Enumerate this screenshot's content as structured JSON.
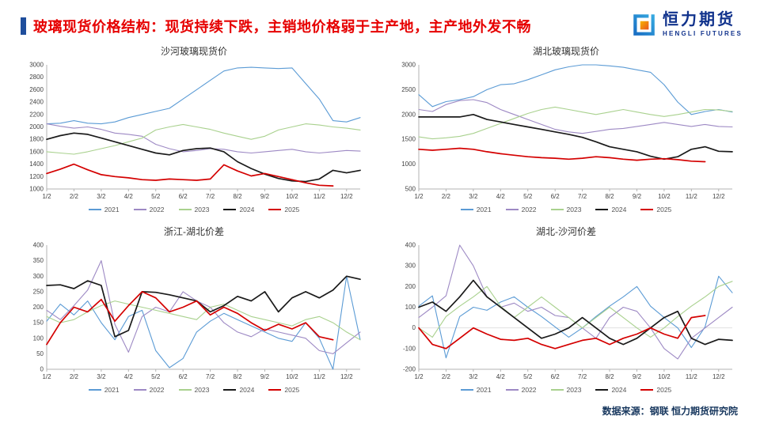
{
  "header": {
    "title": "玻璃现货价格结构：现货持续下跌，主销地价格弱于主产地，主产地外发不畅"
  },
  "logo": {
    "name": "恒力期货",
    "subtitle": "HENGLI FUTURES"
  },
  "footer": {
    "source": "数据来源：钢联  恒力期货研究院"
  },
  "colors": {
    "accent_bar": "#1F4E9C",
    "title_red": "#E60000",
    "logo_navy": "#10328C",
    "footer_navy": "#17375E",
    "series_2021": "#5B9BD5",
    "series_2022": "#9D89C4",
    "series_2023": "#A9D18E",
    "series_2024": "#1A1A1A",
    "series_2025": "#D40000"
  },
  "chart_data": [
    {
      "type": "line",
      "title": "沙河玻璃现货价",
      "x_tick_labels": [
        "1/2",
        "2/2",
        "3/2",
        "4/2",
        "5/2",
        "6/2",
        "7/2",
        "8/2",
        "9/2",
        "10/2",
        "11/2",
        "12/2"
      ],
      "ylim": [
        1000,
        3000
      ],
      "ytick_step": 200,
      "grid": false,
      "legend_position": "bottom",
      "series": [
        {
          "name": "2021",
          "color": "#5B9BD5",
          "values": [
            2050,
            2060,
            2100,
            2060,
            2050,
            2080,
            2150,
            2200,
            2250,
            2300,
            2450,
            2600,
            2750,
            2900,
            2950,
            2960,
            2950,
            2940,
            2950,
            2700,
            2450,
            2100,
            2080,
            2150
          ]
        },
        {
          "name": "2022",
          "color": "#9D89C4",
          "values": [
            2050,
            2010,
            1980,
            2000,
            1960,
            1900,
            1880,
            1850,
            1720,
            1650,
            1600,
            1620,
            1650,
            1640,
            1600,
            1580,
            1600,
            1620,
            1640,
            1600,
            1580,
            1600,
            1620,
            1610
          ]
        },
        {
          "name": "2023",
          "color": "#A9D18E",
          "values": [
            1600,
            1580,
            1560,
            1600,
            1650,
            1700,
            1760,
            1820,
            1950,
            2000,
            2040,
            2000,
            1960,
            1900,
            1850,
            1800,
            1850,
            1950,
            2000,
            2050,
            2030,
            2000,
            1980,
            1950
          ]
        },
        {
          "name": "2024",
          "color": "#1A1A1A",
          "values": [
            1800,
            1860,
            1900,
            1880,
            1820,
            1760,
            1700,
            1640,
            1580,
            1550,
            1620,
            1650,
            1660,
            1600,
            1440,
            1330,
            1240,
            1170,
            1130,
            1120,
            1160,
            1300,
            1260,
            1300
          ]
        },
        {
          "name": "2025",
          "color": "#D40000",
          "values": [
            1250,
            1320,
            1400,
            1310,
            1230,
            1200,
            1180,
            1150,
            1140,
            1160,
            1150,
            1140,
            1160,
            1390,
            1290,
            1210,
            1250,
            1200,
            1150,
            1100,
            1060,
            1050,
            null,
            null
          ]
        }
      ]
    },
    {
      "type": "line",
      "title": "湖北玻璃现货价",
      "x_tick_labels": [
        "1/2",
        "2/2",
        "3/2",
        "4/2",
        "5/2",
        "6/2",
        "7/2",
        "8/2",
        "9/2",
        "10/2",
        "11/2",
        "12/2"
      ],
      "ylim": [
        500,
        3000
      ],
      "ytick_step": 500,
      "grid": false,
      "legend_position": "bottom",
      "series": [
        {
          "name": "2021",
          "color": "#5B9BD5",
          "values": [
            2400,
            2160,
            2260,
            2300,
            2360,
            2500,
            2600,
            2620,
            2700,
            2800,
            2900,
            2960,
            3000,
            3000,
            2980,
            2950,
            2900,
            2850,
            2600,
            2250,
            2000,
            2060,
            2100,
            2050
          ]
        },
        {
          "name": "2022",
          "color": "#9D89C4",
          "values": [
            2100,
            2060,
            2200,
            2280,
            2300,
            2240,
            2100,
            2000,
            1900,
            1800,
            1700,
            1650,
            1620,
            1660,
            1700,
            1720,
            1760,
            1800,
            1840,
            1800,
            1760,
            1800,
            1760,
            1750
          ]
        },
        {
          "name": "2023",
          "color": "#A9D18E",
          "values": [
            1550,
            1510,
            1530,
            1560,
            1620,
            1720,
            1820,
            1920,
            2020,
            2100,
            2150,
            2100,
            2050,
            2000,
            2050,
            2100,
            2050,
            2000,
            1960,
            2000,
            2050,
            2100,
            2090,
            2060
          ]
        },
        {
          "name": "2024",
          "color": "#1A1A1A",
          "values": [
            1950,
            1950,
            1950,
            1950,
            2000,
            1900,
            1850,
            1800,
            1750,
            1700,
            1650,
            1600,
            1540,
            1450,
            1350,
            1300,
            1250,
            1160,
            1100,
            1150,
            1300,
            1350,
            1260,
            1250
          ]
        },
        {
          "name": "2025",
          "color": "#D40000",
          "values": [
            1300,
            1280,
            1300,
            1320,
            1300,
            1250,
            1210,
            1180,
            1150,
            1130,
            1120,
            1100,
            1120,
            1150,
            1130,
            1100,
            1080,
            1100,
            1110,
            1090,
            1060,
            1050,
            null,
            null
          ]
        }
      ]
    },
    {
      "type": "line",
      "title": "浙江-湖北价差",
      "x_tick_labels": [
        "1/2",
        "2/2",
        "3/2",
        "4/2",
        "5/2",
        "6/2",
        "7/2",
        "8/2",
        "9/2",
        "10/2",
        "11/2",
        "12/2"
      ],
      "ylim": [
        0,
        400
      ],
      "ytick_step": 50,
      "grid": false,
      "legend_position": "bottom",
      "series": [
        {
          "name": "2021",
          "color": "#5B9BD5",
          "values": [
            155,
            210,
            175,
            220,
            150,
            95,
            170,
            190,
            60,
            5,
            35,
            120,
            155,
            180,
            160,
            140,
            120,
            100,
            90,
            150,
            100,
            0,
            300,
            95
          ]
        },
        {
          "name": "2022",
          "color": "#9D89C4",
          "values": [
            190,
            160,
            205,
            255,
            350,
            145,
            55,
            170,
            200,
            185,
            250,
            220,
            200,
            150,
            120,
            105,
            130,
            120,
            110,
            100,
            60,
            50,
            85,
            120
          ]
        },
        {
          "name": "2023",
          "color": "#A9D18E",
          "values": [
            170,
            150,
            160,
            185,
            205,
            220,
            210,
            200,
            190,
            180,
            170,
            160,
            200,
            210,
            190,
            170,
            160,
            150,
            140,
            160,
            170,
            150,
            120,
            95
          ]
        },
        {
          "name": "2024",
          "color": "#1A1A1A",
          "values": [
            270,
            272,
            260,
            285,
            270,
            105,
            125,
            250,
            248,
            240,
            230,
            220,
            185,
            205,
            235,
            220,
            250,
            185,
            230,
            250,
            230,
            255,
            300,
            290
          ]
        },
        {
          "name": "2025",
          "color": "#D40000",
          "values": [
            80,
            150,
            200,
            185,
            225,
            155,
            205,
            250,
            230,
            185,
            200,
            220,
            175,
            200,
            180,
            150,
            125,
            145,
            130,
            150,
            105,
            95,
            null,
            null
          ]
        }
      ]
    },
    {
      "type": "line",
      "title": "湖北-沙河价差",
      "x_tick_labels": [
        "1/2",
        "2/2",
        "3/2",
        "4/2",
        "5/2",
        "6/2",
        "7/2",
        "8/2",
        "9/2",
        "10/2",
        "11/2",
        "12/2"
      ],
      "ylim": [
        -200,
        400
      ],
      "ytick_step": 100,
      "grid": false,
      "legend_position": "bottom",
      "series": [
        {
          "name": "2021",
          "color": "#5B9BD5",
          "values": [
            105,
            155,
            -145,
            55,
            100,
            85,
            125,
            150,
            100,
            55,
            5,
            -45,
            0,
            55,
            105,
            150,
            200,
            105,
            50,
            0,
            -95,
            5,
            250,
            170
          ]
        },
        {
          "name": "2022",
          "color": "#9D89C4",
          "values": [
            50,
            100,
            155,
            400,
            300,
            150,
            100,
            120,
            80,
            100,
            60,
            50,
            0,
            -50,
            50,
            100,
            80,
            0,
            -100,
            -150,
            -50,
            0,
            50,
            100
          ]
        },
        {
          "name": "2023",
          "color": "#A9D18E",
          "values": [
            0,
            -45,
            55,
            105,
            150,
            200,
            105,
            50,
            100,
            150,
            100,
            50,
            0,
            50,
            100,
            50,
            0,
            -45,
            0,
            55,
            105,
            150,
            200,
            225
          ]
        },
        {
          "name": "2024",
          "color": "#1A1A1A",
          "values": [
            100,
            125,
            80,
            150,
            230,
            150,
            100,
            50,
            0,
            -50,
            -30,
            0,
            50,
            0,
            -50,
            -80,
            -50,
            0,
            50,
            80,
            -50,
            -80,
            -55,
            -60
          ]
        },
        {
          "name": "2025",
          "color": "#D40000",
          "values": [
            0,
            -80,
            -100,
            -50,
            0,
            -30,
            -55,
            -60,
            -50,
            -80,
            -100,
            -80,
            -60,
            -50,
            -80,
            -50,
            -30,
            0,
            -30,
            -50,
            50,
            60,
            null,
            null
          ]
        }
      ]
    }
  ]
}
